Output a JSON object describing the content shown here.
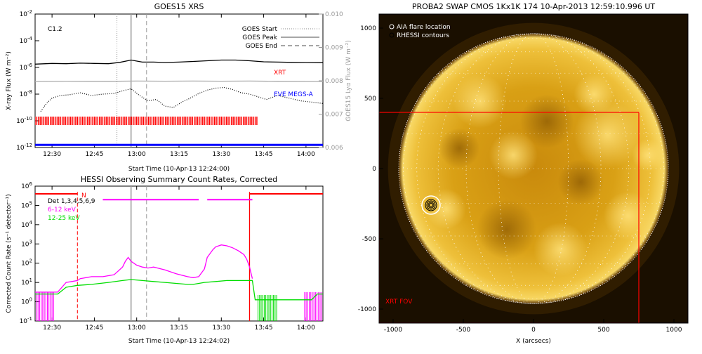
{
  "chart_data": [
    {
      "type": "line",
      "title": "GOES15 XRS",
      "xlabel": "Start Time (10-Apr-13 12:24:00)",
      "ylabel": "X-ray Flux (W m⁻²)",
      "ylabel_right": "GOES15 Lyα Flux (W m⁻²)",
      "x_ticks": [
        "12:30",
        "12:45",
        "13:00",
        "13:15",
        "13:30",
        "13:45",
        "14:00"
      ],
      "x_tick_minutes": [
        30,
        45,
        60,
        75,
        90,
        105,
        120
      ],
      "xlim_minutes": [
        24,
        126
      ],
      "y_scale": "log",
      "ylim_exp": [
        -12,
        -2
      ],
      "y_ticks_exp": [
        -2,
        -4,
        -6,
        -8,
        -10,
        -12
      ],
      "y_tick_base": "10",
      "y2_ticks": [
        "0.006",
        "0.007",
        "0.008",
        "0.009",
        "0.010"
      ],
      "y2lim": [
        0.006,
        0.01
      ],
      "flare_class": "C1.2",
      "legend": [
        {
          "label": "GOES Start",
          "style": "dotted"
        },
        {
          "label": "GOES Peak",
          "style": "solid"
        },
        {
          "label": "GOES End",
          "style": "dashed"
        }
      ],
      "event_lines_minutes": {
        "start": 53,
        "peak": 58,
        "end": 63.5
      },
      "annotations": [
        {
          "text": "XRT",
          "color": "#ff0000"
        },
        {
          "text": "EVE MEGS-A",
          "color": "#0000ff"
        }
      ],
      "series": [
        {
          "key": "long",
          "color": "#000000",
          "x": [
            24,
            30,
            35,
            40,
            45,
            50,
            54,
            58,
            62,
            66,
            70,
            75,
            80,
            85,
            90,
            95,
            100,
            105,
            110,
            115,
            120,
            126
          ],
          "y_exp": [
            -5.75,
            -5.7,
            -5.72,
            -5.68,
            -5.7,
            -5.72,
            -5.62,
            -5.45,
            -5.6,
            -5.6,
            -5.63,
            -5.6,
            -5.55,
            -5.5,
            -5.45,
            -5.45,
            -5.5,
            -5.58,
            -5.6,
            -5.62,
            -5.63,
            -5.65
          ]
        },
        {
          "key": "lya",
          "color": "#aaaaaa",
          "x": [
            24,
            35,
            50,
            60,
            70,
            80,
            90,
            100,
            110,
            126
          ],
          "y_exp": [
            -7.05,
            -7.03,
            -7.04,
            -7.02,
            -7.03,
            -7.02,
            -7.03,
            -7.02,
            -7.04,
            -7.05
          ]
        },
        {
          "key": "short",
          "color": "#000000",
          "style": "dotted",
          "x": [
            26,
            28,
            30,
            33,
            36,
            40,
            44,
            48,
            52,
            55,
            58,
            61,
            64,
            67,
            70,
            73,
            76,
            79,
            82,
            85,
            88,
            91,
            94,
            97,
            100,
            103,
            106,
            110,
            114,
            118,
            122,
            126
          ],
          "y_exp": [
            -9.3,
            -8.7,
            -8.3,
            -8.1,
            -8.05,
            -7.9,
            -8.1,
            -8.0,
            -7.95,
            -7.75,
            -7.6,
            -8.1,
            -8.5,
            -8.4,
            -8.9,
            -9.0,
            -8.6,
            -8.3,
            -7.95,
            -7.7,
            -7.55,
            -7.5,
            -7.65,
            -7.9,
            -8.0,
            -8.2,
            -8.4,
            -8.1,
            -8.3,
            -8.5,
            -8.6,
            -8.7
          ]
        }
      ],
      "xrt_segment_minutes": [
        24,
        103
      ],
      "xrt_level_exp": -10.0,
      "eve_level_exp": -11.8
    },
    {
      "type": "line",
      "title": "HESSI Observing Summary Count Rates, Corrected",
      "xlabel": "Start Time (10-Apr-13 12:24:02)",
      "ylabel": "Corrected Count Rate (s⁻¹ detector⁻¹)",
      "x_ticks": [
        "12:30",
        "12:45",
        "13:00",
        "13:15",
        "13:30",
        "13:45",
        "14:00"
      ],
      "x_tick_minutes": [
        30,
        45,
        60,
        75,
        90,
        105,
        120
      ],
      "xlim_minutes": [
        24,
        126
      ],
      "y_scale": "log",
      "ylim_exp": [
        -1,
        6
      ],
      "y_ticks_exp": [
        6,
        5,
        4,
        3,
        2,
        1,
        0,
        -1
      ],
      "y_tick_base": "10",
      "detector_label": "Det 1,3,4,5,6,9",
      "flag_letter": "N",
      "legend": [
        {
          "label": "6-12 keV",
          "color": "#ff00ff"
        },
        {
          "label": "12-25 keV",
          "color": "#00dd00"
        }
      ],
      "event_lines_minutes": {
        "start": 39,
        "peak": 58,
        "end": 63.5,
        "saa": 100
      },
      "night_segments_minutes": [
        [
          24,
          39
        ],
        [
          100,
          126
        ]
      ],
      "attenuator_segments_minutes": [
        [
          48,
          82
        ],
        [
          85,
          101
        ]
      ],
      "series": [
        {
          "key": "low",
          "name": "6-12 keV",
          "color": "#ff00ff",
          "x": [
            24,
            32,
            35,
            37,
            39,
            40,
            44,
            48,
            52,
            55,
            56,
            57,
            58,
            60,
            62,
            64,
            66,
            70,
            74,
            78,
            80,
            82,
            84,
            85,
            87,
            88,
            90,
            92,
            94,
            96,
            98,
            99,
            100,
            101
          ],
          "y_exp": [
            0.5,
            0.5,
            1.0,
            1.05,
            1.1,
            1.2,
            1.3,
            1.3,
            1.4,
            1.8,
            2.1,
            2.3,
            2.1,
            1.9,
            1.8,
            1.75,
            1.8,
            1.65,
            1.45,
            1.3,
            1.25,
            1.3,
            1.7,
            2.3,
            2.7,
            2.85,
            2.95,
            2.9,
            2.8,
            2.65,
            2.45,
            2.2,
            1.8,
            1.2
          ]
        },
        {
          "key": "high",
          "name": "12-25 keV",
          "color": "#00dd00",
          "x": [
            24,
            32,
            35,
            37,
            39,
            44,
            50,
            55,
            58,
            62,
            66,
            70,
            74,
            78,
            80,
            84,
            88,
            92,
            96,
            100,
            101,
            102,
            104,
            106,
            108,
            110,
            112,
            114,
            116,
            118,
            120,
            122,
            124,
            126
          ],
          "y_exp": [
            0.4,
            0.4,
            0.75,
            0.8,
            0.85,
            0.9,
            1.0,
            1.1,
            1.15,
            1.1,
            1.05,
            1.0,
            0.95,
            0.9,
            0.9,
            1.0,
            1.05,
            1.1,
            1.1,
            1.1,
            1.1,
            0.1,
            0.1,
            0.1,
            0.1,
            0.1,
            0.1,
            0.1,
            0.1,
            0.1,
            0.1,
            0.1,
            0.4,
            0.4
          ]
        }
      ]
    },
    {
      "type": "heatmap",
      "title": "PROBA2 SWAP CMOS 1Kx1K 174 10-Apr-2013 12:59:10.996 UT",
      "xlabel": "X (arcsecs)",
      "ylabel": "",
      "x_ticks": [
        "-1000",
        "-500",
        "0",
        "500",
        "1000"
      ],
      "y_ticks": [
        "1000",
        "500",
        "0",
        "-500",
        "-1000"
      ],
      "xlim": [
        -1100,
        1100
      ],
      "ylim": [
        -1100,
        1100
      ],
      "legend": [
        {
          "label": "AIA flare location",
          "marker": "circle-white"
        },
        {
          "label": "RHESSI contours",
          "marker": "circle-black"
        }
      ],
      "fov_label": "XRT FOV",
      "fov_color": "#ff0000",
      "fov_box_arcsec": {
        "x0": -1100,
        "x1": 750,
        "y0": -1100,
        "y1": 400
      },
      "flare_location_arcsec": {
        "x": -730,
        "y": -260
      },
      "sun_radius_arcsec": 960
    }
  ]
}
